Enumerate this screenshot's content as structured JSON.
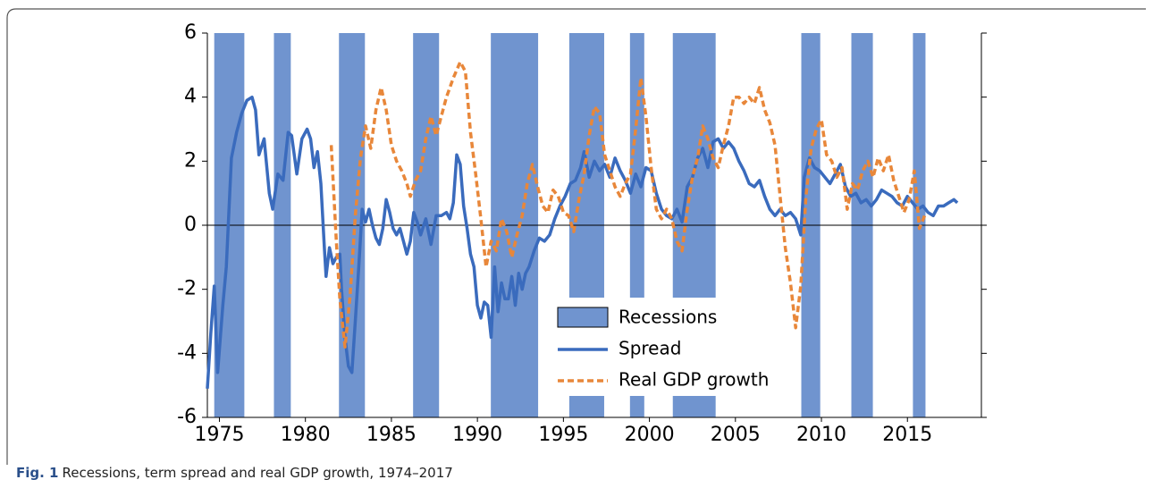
{
  "chart_data": {
    "type": "line",
    "caption_label": "Fig. 1",
    "caption": "Recessions, term spread and real GDP growth, 1974–2017",
    "xlim": [
      1974.3,
      2019.3
    ],
    "xticks": [
      1975,
      1980,
      1985,
      1990,
      1995,
      2000,
      2005,
      2010,
      2015
    ],
    "ylim": [
      -6,
      6
    ],
    "yticks": [
      -6,
      -4,
      -2,
      0,
      2,
      4,
      6
    ],
    "recessions": {
      "name": "Recessions",
      "color": "#7094cf",
      "spans": [
        [
          1974.7,
          1976.45
        ],
        [
          1978.17,
          1979.15
        ],
        [
          1981.95,
          1983.46
        ],
        [
          1986.26,
          1987.77
        ],
        [
          1990.78,
          1993.53
        ],
        [
          1995.34,
          1997.37
        ],
        [
          1998.87,
          1999.7
        ],
        [
          2001.36,
          2003.85
        ],
        [
          2008.83,
          2009.93
        ],
        [
          2011.74,
          2012.99
        ],
        [
          2015.32,
          2016.05
        ]
      ]
    },
    "series": [
      {
        "name": "Spread",
        "color": "#3a6bbd",
        "dashed": false,
        "x": [
          1974.3,
          1974.5,
          1974.7,
          1974.9,
          1975.2,
          1975.4,
          1975.7,
          1976.0,
          1976.3,
          1976.6,
          1976.9,
          1977.1,
          1977.3,
          1977.6,
          1977.9,
          1978.1,
          1978.4,
          1978.7,
          1979.0,
          1979.2,
          1979.5,
          1979.8,
          1980.1,
          1980.3,
          1980.5,
          1980.7,
          1980.9,
          1981.1,
          1981.2,
          1981.4,
          1981.6,
          1981.8,
          1982.0,
          1982.1,
          1982.3,
          1982.5,
          1982.7,
          1982.9,
          1983.1,
          1983.3,
          1983.5,
          1983.7,
          1983.9,
          1984.1,
          1984.3,
          1984.5,
          1984.7,
          1984.9,
          1985.1,
          1985.3,
          1985.5,
          1985.7,
          1985.9,
          1986.1,
          1986.3,
          1986.5,
          1986.7,
          1987.0,
          1987.3,
          1987.6,
          1987.9,
          1988.2,
          1988.4,
          1988.6,
          1988.8,
          1989.0,
          1989.2,
          1989.4,
          1989.6,
          1989.8,
          1990.0,
          1990.2,
          1990.4,
          1990.6,
          1990.8,
          1991.0,
          1991.2,
          1991.4,
          1991.6,
          1991.8,
          1992.0,
          1992.2,
          1992.4,
          1992.6,
          1992.8,
          1993.0,
          1993.3,
          1993.6,
          1993.9,
          1994.2,
          1994.5,
          1994.8,
          1995.1,
          1995.4,
          1995.7,
          1996.0,
          1996.2,
          1996.5,
          1996.8,
          1997.1,
          1997.4,
          1997.7,
          1998.0,
          1998.3,
          1998.6,
          1998.9,
          1999.2,
          1999.5,
          1999.8,
          2000.1,
          2000.4,
          2000.7,
          2001.0,
          2001.3,
          2001.6,
          2001.9,
          2002.2,
          2002.5,
          2002.8,
          2003.1,
          2003.4,
          2003.7,
          2004.0,
          2004.3,
          2004.6,
          2004.9,
          2005.2,
          2005.5,
          2005.8,
          2006.1,
          2006.4,
          2006.7,
          2007.0,
          2007.3,
          2007.6,
          2007.9,
          2008.2,
          2008.5,
          2008.8,
          2009.0,
          2009.3,
          2009.6,
          2009.9,
          2010.2,
          2010.5,
          2010.8,
          2011.1,
          2011.4,
          2011.7,
          2012.0,
          2012.3,
          2012.6,
          2012.9,
          2013.2,
          2013.5,
          2013.8,
          2014.1,
          2014.4,
          2014.7,
          2015.0,
          2015.3,
          2015.6,
          2015.9,
          2016.2,
          2016.5,
          2016.8,
          2017.1,
          2017.4,
          2017.7,
          2017.9
        ],
        "values": [
          -5.1,
          -3.4,
          -1.9,
          -4.6,
          -2.5,
          -1.3,
          2.1,
          2.9,
          3.5,
          3.9,
          4.0,
          3.6,
          2.2,
          2.7,
          1.0,
          0.5,
          1.6,
          1.4,
          2.9,
          2.8,
          1.6,
          2.7,
          3.0,
          2.7,
          1.8,
          2.3,
          1.3,
          -0.7,
          -1.6,
          -0.7,
          -1.2,
          -1.0,
          -0.9,
          -2.0,
          -3.5,
          -4.4,
          -4.6,
          -3.0,
          -1.3,
          0.5,
          0.1,
          0.5,
          0.0,
          -0.4,
          -0.6,
          -0.1,
          0.8,
          0.4,
          -0.1,
          -0.3,
          -0.1,
          -0.5,
          -0.9,
          -0.5,
          0.4,
          0.1,
          -0.3,
          0.2,
          -0.6,
          0.3,
          0.3,
          0.4,
          0.2,
          0.7,
          2.2,
          1.9,
          0.6,
          -0.1,
          -0.9,
          -1.3,
          -2.5,
          -2.9,
          -2.4,
          -2.5,
          -3.5,
          -1.3,
          -2.7,
          -1.8,
          -2.3,
          -2.3,
          -1.6,
          -2.5,
          -1.5,
          -2.0,
          -1.5,
          -1.3,
          -0.8,
          -0.4,
          -0.5,
          -0.3,
          0.2,
          0.6,
          0.9,
          1.3,
          1.4,
          1.8,
          2.3,
          1.5,
          2.0,
          1.7,
          1.9,
          1.5,
          2.1,
          1.7,
          1.4,
          1.0,
          1.6,
          1.2,
          1.8,
          1.7,
          1.0,
          0.5,
          0.3,
          0.2,
          0.5,
          0.1,
          1.2,
          1.5,
          2.1,
          2.4,
          1.8,
          2.6,
          2.7,
          2.4,
          2.6,
          2.4,
          2.0,
          1.7,
          1.3,
          1.2,
          1.4,
          0.9,
          0.5,
          0.3,
          0.5,
          0.3,
          0.4,
          0.2,
          -0.3,
          1.5,
          2.1,
          1.8,
          1.7,
          1.5,
          1.3,
          1.6,
          1.9,
          1.2,
          0.9,
          1.0,
          0.7,
          0.8,
          0.6,
          0.8,
          1.1,
          1.0,
          0.9,
          0.7,
          0.6,
          0.9,
          0.7,
          0.5,
          0.6,
          0.4,
          0.3,
          0.6,
          0.6,
          0.7,
          0.8,
          0.7
        ]
      },
      {
        "name": "Real GDP growth",
        "color": "#e8873a",
        "dashed": true,
        "x": [
          1981.5,
          1981.8,
          1982.0,
          1982.3,
          1982.6,
          1982.9,
          1983.2,
          1983.5,
          1983.8,
          1984.1,
          1984.4,
          1984.7,
          1985.0,
          1985.3,
          1985.6,
          1985.9,
          1986.1,
          1986.4,
          1986.7,
          1987.0,
          1987.3,
          1987.6,
          1987.9,
          1988.2,
          1988.6,
          1989.0,
          1989.3,
          1989.6,
          1989.9,
          1990.2,
          1990.5,
          1990.8,
          1991.1,
          1991.4,
          1991.7,
          1992.0,
          1992.3,
          1992.6,
          1992.9,
          1993.2,
          1993.5,
          1993.8,
          1994.1,
          1994.4,
          1994.7,
          1995.0,
          1995.3,
          1995.6,
          1995.9,
          1996.2,
          1996.5,
          1996.8,
          1997.1,
          1997.4,
          1997.7,
          1998.0,
          1998.3,
          1998.6,
          1998.9,
          1999.2,
          1999.5,
          1999.8,
          2000.1,
          2000.4,
          2000.7,
          2001.0,
          2001.3,
          2001.6,
          2001.9,
          2002.2,
          2002.5,
          2002.8,
          2003.1,
          2003.4,
          2003.7,
          2004.0,
          2004.3,
          2004.6,
          2004.9,
          2005.2,
          2005.5,
          2005.8,
          2006.1,
          2006.4,
          2006.7,
          2007.0,
          2007.3,
          2007.6,
          2007.9,
          2008.2,
          2008.5,
          2008.8,
          2009.1,
          2009.4,
          2009.7,
          2010.0,
          2010.3,
          2010.6,
          2010.9,
          2011.2,
          2011.5,
          2011.8,
          2012.1,
          2012.4,
          2012.7,
          2013.0,
          2013.3,
          2013.6,
          2013.9,
          2014.2,
          2014.5,
          2014.8,
          2015.1,
          2015.4,
          2015.7,
          2016.0
        ],
        "values": [
          2.5,
          -0.5,
          -2.3,
          -3.8,
          -2.2,
          0.3,
          2.1,
          3.1,
          2.4,
          3.6,
          4.3,
          3.6,
          2.5,
          2.0,
          1.7,
          1.3,
          0.9,
          1.4,
          1.7,
          2.7,
          3.4,
          2.8,
          3.4,
          4.0,
          4.6,
          5.1,
          4.8,
          2.9,
          1.6,
          0.2,
          -1.3,
          -0.5,
          -0.8,
          0.2,
          -0.2,
          -1.0,
          -0.3,
          0.3,
          1.3,
          1.9,
          1.2,
          0.6,
          0.4,
          1.1,
          0.9,
          0.4,
          0.3,
          -0.2,
          0.8,
          1.6,
          2.8,
          3.7,
          3.5,
          2.2,
          1.7,
          1.2,
          0.9,
          1.3,
          1.6,
          3.0,
          4.6,
          3.4,
          1.8,
          0.5,
          0.2,
          0.5,
          0.2,
          -0.5,
          -0.8,
          0.5,
          1.5,
          2.1,
          3.1,
          2.7,
          2.1,
          1.8,
          2.5,
          3.1,
          4.0,
          4.0,
          3.8,
          4.0,
          3.8,
          4.3,
          3.6,
          3.2,
          2.5,
          0.9,
          -0.7,
          -1.8,
          -3.2,
          -1.9,
          0.9,
          2.4,
          3.0,
          3.3,
          2.2,
          2.0,
          1.5,
          1.8,
          0.5,
          1.3,
          1.1,
          1.7,
          2.0,
          1.5,
          2.1,
          1.7,
          2.2,
          1.4,
          0.9,
          0.4,
          0.8,
          1.7,
          -0.1,
          0.3
        ]
      }
    ]
  }
}
